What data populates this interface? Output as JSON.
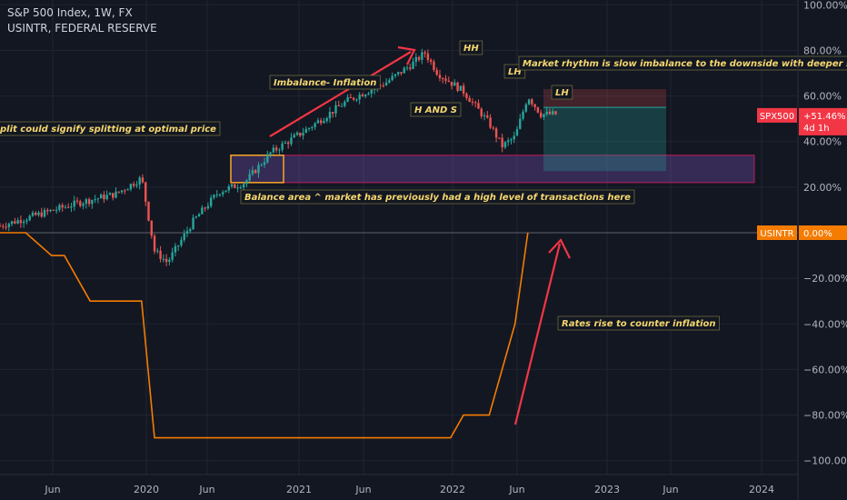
{
  "legend": {
    "line1": "S&P 500 Index, 1W, FX",
    "line2": "USINTR, FEDERAL RESERVE"
  },
  "chart_data": {
    "type": "line",
    "x_tick_labels": [
      "Jun",
      "2020",
      "Jun",
      "2021",
      "Jun",
      "2022",
      "Jun",
      "2023",
      "Jun",
      "2024"
    ],
    "y_tick_labels": [
      "100.00%",
      "80.00%",
      "60.00%",
      "40.00%",
      "20.00%",
      "0.00%",
      "−20.00%",
      "−40.00%",
      "−60.00%",
      "−80.00%",
      "−100.00%"
    ],
    "ylim": [
      -100,
      100
    ],
    "y_unit": "%",
    "series": [
      {
        "name": "SPX500",
        "color": "#26a69a",
        "down_color": "#ef5350",
        "badge": "+51.46%",
        "badge_sub": "4d 1h",
        "x": [
          "2019-03",
          "2019-06",
          "2019-09",
          "2019-12",
          "2020-02",
          "2020-03",
          "2020-04",
          "2020-06",
          "2020-08",
          "2020-10",
          "2020-12",
          "2021-03",
          "2021-06",
          "2021-09",
          "2021-11",
          "2021-12",
          "2022-01",
          "2022-03",
          "2022-05",
          "2022-06",
          "2022-07",
          "2022-08",
          "2022-09"
        ],
        "y": [
          3,
          8,
          13,
          17,
          24,
          -8,
          -13,
          5,
          18,
          22,
          35,
          46,
          58,
          66,
          74,
          79,
          70,
          62,
          48,
          38,
          42,
          60,
          52
        ]
      },
      {
        "name": "USINTR",
        "color": "#f57c00",
        "badge": "0.00%",
        "x": [
          "2019-05",
          "2019-07",
          "2019-08",
          "2019-10",
          "2020-02",
          "2020-03",
          "2022-02",
          "2022-03",
          "2022-05",
          "2022-06",
          "2022-07",
          "2022-08"
        ],
        "y": [
          0,
          -10,
          -10,
          -30,
          -30,
          -90,
          -90,
          -80,
          -80,
          -60,
          -40,
          0
        ]
      }
    ],
    "annotations": {
      "split": "plit could signify splitting at optimal price",
      "imbalance": "Imbalance- Inflation",
      "hh": "HH",
      "lh1": "LH",
      "lh2": "LH",
      "hs": "H AND S",
      "rhythm": "Market rhythm is slow imbalance to the downside with deeper swings",
      "balance": "Balance area ^ market has previously had a high level of transactions here",
      "rates": "Rates rise to counter inflation"
    }
  }
}
